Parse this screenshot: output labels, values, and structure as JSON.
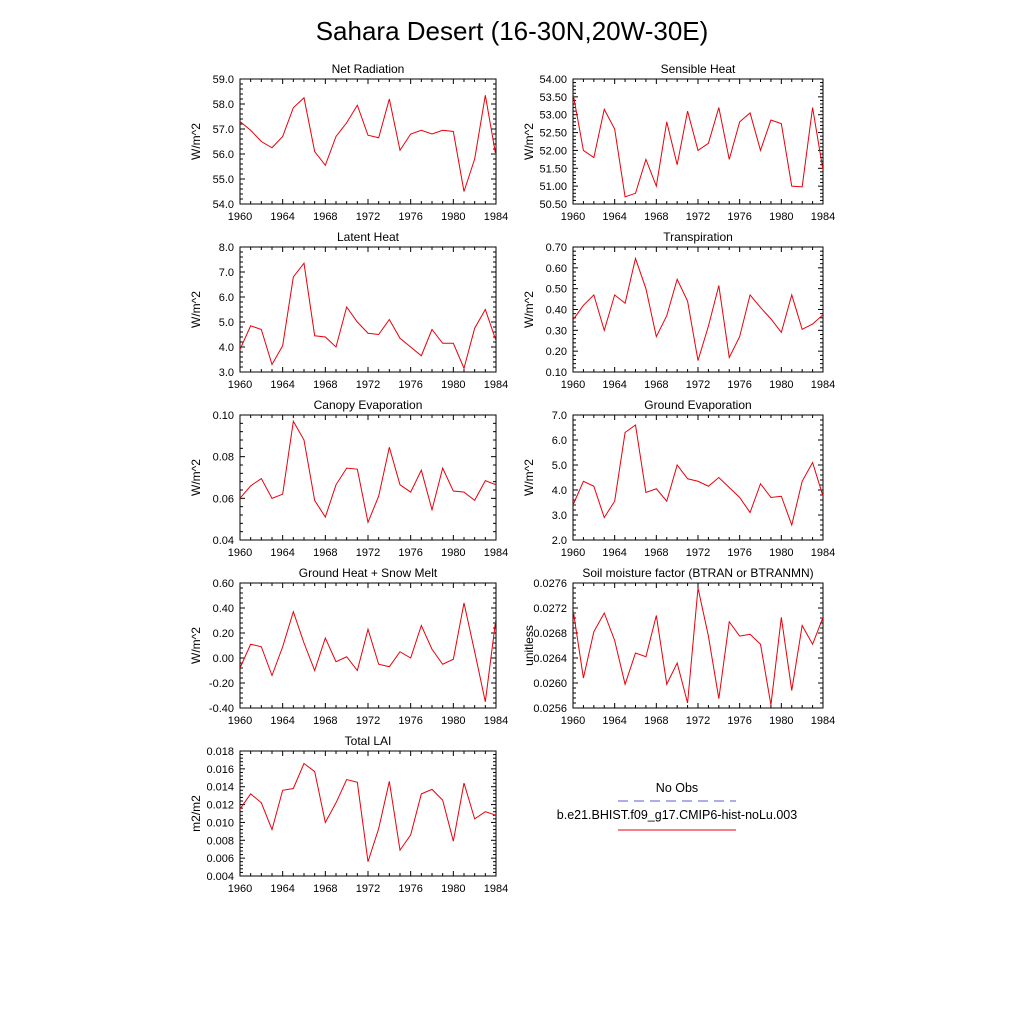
{
  "title": "Sahara Desert (16-30N,20W-30E)",
  "colors": {
    "series": "#e8000b",
    "obs": "#5b5bd6",
    "frame": "#000000"
  },
  "legend": {
    "obs_label": "No Obs",
    "model_label": "b.e21.BHIST.f09_g17.CMIP6-hist-noLu.003"
  },
  "chart_data": [
    {
      "type": "line",
      "title": "Net Radiation",
      "ylabel": "W/m^2",
      "x": [
        1960,
        1961,
        1962,
        1963,
        1964,
        1965,
        1966,
        1967,
        1968,
        1969,
        1970,
        1971,
        1972,
        1973,
        1974,
        1975,
        1976,
        1977,
        1978,
        1979,
        1980,
        1981,
        1982,
        1983,
        1984
      ],
      "values": [
        57.3,
        56.95,
        56.5,
        56.25,
        56.7,
        57.85,
        58.25,
        56.1,
        55.55,
        56.7,
        57.25,
        57.95,
        56.75,
        56.65,
        58.2,
        56.15,
        56.8,
        56.95,
        56.8,
        56.95,
        56.9,
        54.5,
        55.8,
        58.35,
        55.9
      ],
      "xlim": [
        1960,
        1984
      ],
      "ylim": [
        54.0,
        59.0
      ],
      "xticks": [
        "1960",
        "1964",
        "1968",
        "1972",
        "1976",
        "1980",
        "1984"
      ],
      "yticks": [
        "54.0",
        "55.0",
        "56.0",
        "57.0",
        "58.0",
        "59.0"
      ],
      "grid": false
    },
    {
      "type": "line",
      "title": "Sensible Heat",
      "ylabel": "W/m^2",
      "x": [
        1960,
        1961,
        1962,
        1963,
        1964,
        1965,
        1966,
        1967,
        1968,
        1969,
        1970,
        1971,
        1972,
        1973,
        1974,
        1975,
        1976,
        1977,
        1978,
        1979,
        1980,
        1981,
        1982,
        1983,
        1984
      ],
      "values": [
        53.6,
        52.0,
        51.8,
        53.15,
        52.6,
        50.7,
        50.8,
        51.75,
        51.0,
        52.8,
        51.6,
        53.1,
        52.0,
        52.2,
        53.2,
        51.75,
        52.8,
        53.05,
        52.0,
        52.85,
        52.75,
        51.0,
        50.98,
        53.2,
        51.45
      ],
      "xlim": [
        1960,
        1984
      ],
      "ylim": [
        50.5,
        54.0
      ],
      "xticks": [
        "1960",
        "1964",
        "1968",
        "1972",
        "1976",
        "1980",
        "1984"
      ],
      "yticks": [
        "50.50",
        "51.00",
        "51.50",
        "52.00",
        "52.50",
        "53.00",
        "53.50",
        "54.00"
      ],
      "grid": false
    },
    {
      "type": "line",
      "title": "Latent Heat",
      "ylabel": "W/m^2",
      "x": [
        1960,
        1961,
        1962,
        1963,
        1964,
        1965,
        1966,
        1967,
        1968,
        1969,
        1970,
        1971,
        1972,
        1973,
        1974,
        1975,
        1976,
        1977,
        1978,
        1979,
        1980,
        1981,
        1982,
        1983,
        1984
      ],
      "values": [
        3.9,
        4.85,
        4.7,
        3.3,
        4.05,
        6.8,
        7.35,
        4.45,
        4.4,
        4.0,
        5.6,
        5.0,
        4.55,
        4.5,
        5.1,
        4.35,
        4.0,
        3.65,
        4.7,
        4.15,
        4.15,
        3.15,
        4.75,
        5.5,
        4.25
      ],
      "xlim": [
        1960,
        1984
      ],
      "ylim": [
        3.0,
        8.0
      ],
      "xticks": [
        "1960",
        "1964",
        "1968",
        "1972",
        "1976",
        "1980",
        "1984"
      ],
      "yticks": [
        "3.0",
        "4.0",
        "5.0",
        "6.0",
        "7.0",
        "8.0"
      ],
      "grid": false
    },
    {
      "type": "line",
      "title": "Transpiration",
      "ylabel": "W/m^2",
      "x": [
        1960,
        1961,
        1962,
        1963,
        1964,
        1965,
        1966,
        1967,
        1968,
        1969,
        1970,
        1971,
        1972,
        1973,
        1974,
        1975,
        1976,
        1977,
        1978,
        1979,
        1980,
        1981,
        1982,
        1983,
        1984
      ],
      "values": [
        0.35,
        0.42,
        0.47,
        0.3,
        0.47,
        0.43,
        0.645,
        0.5,
        0.27,
        0.37,
        0.545,
        0.44,
        0.155,
        0.32,
        0.515,
        0.17,
        0.27,
        0.47,
        0.41,
        0.355,
        0.29,
        0.47,
        0.305,
        0.33,
        0.375
      ],
      "xlim": [
        1960,
        1984
      ],
      "ylim": [
        0.1,
        0.7
      ],
      "xticks": [
        "1960",
        "1964",
        "1968",
        "1972",
        "1976",
        "1980",
        "1984"
      ],
      "yticks": [
        "0.10",
        "0.20",
        "0.30",
        "0.40",
        "0.50",
        "0.60",
        "0.70"
      ],
      "grid": false
    },
    {
      "type": "line",
      "title": "Canopy Evaporation",
      "ylabel": "W/m^2",
      "x": [
        1960,
        1961,
        1962,
        1963,
        1964,
        1965,
        1966,
        1967,
        1968,
        1969,
        1970,
        1971,
        1972,
        1973,
        1974,
        1975,
        1976,
        1977,
        1978,
        1979,
        1980,
        1981,
        1982,
        1983,
        1984
      ],
      "values": [
        0.06,
        0.066,
        0.0695,
        0.06,
        0.062,
        0.097,
        0.088,
        0.059,
        0.051,
        0.0665,
        0.0745,
        0.074,
        0.0485,
        0.061,
        0.0845,
        0.0665,
        0.063,
        0.0735,
        0.0545,
        0.0745,
        0.0635,
        0.063,
        0.059,
        0.0685,
        0.0665
      ],
      "xlim": [
        1960,
        1984
      ],
      "ylim": [
        0.04,
        0.1
      ],
      "xticks": [
        "1960",
        "1964",
        "1968",
        "1972",
        "1976",
        "1980",
        "1984"
      ],
      "yticks": [
        "0.04",
        "0.06",
        "0.08",
        "0.10"
      ],
      "grid": false
    },
    {
      "type": "line",
      "title": "Ground Evaporation",
      "ylabel": "W/m^2",
      "x": [
        1960,
        1961,
        1962,
        1963,
        1964,
        1965,
        1966,
        1967,
        1968,
        1969,
        1970,
        1971,
        1972,
        1973,
        1974,
        1975,
        1976,
        1977,
        1978,
        1979,
        1980,
        1981,
        1982,
        1983,
        1984
      ],
      "values": [
        3.4,
        4.35,
        4.15,
        2.9,
        3.55,
        6.3,
        6.6,
        3.9,
        4.05,
        3.55,
        5.0,
        4.45,
        4.35,
        4.15,
        4.5,
        4.1,
        3.7,
        3.1,
        4.25,
        3.7,
        3.75,
        2.6,
        4.35,
        5.1,
        3.75
      ],
      "xlim": [
        1960,
        1984
      ],
      "ylim": [
        2.0,
        7.0
      ],
      "xticks": [
        "1960",
        "1964",
        "1968",
        "1972",
        "1976",
        "1980",
        "1984"
      ],
      "yticks": [
        "2.0",
        "3.0",
        "4.0",
        "5.0",
        "6.0",
        "7.0"
      ],
      "grid": false
    },
    {
      "type": "line",
      "title": "Ground Heat + Snow Melt",
      "ylabel": "W/m^2",
      "x": [
        1960,
        1961,
        1962,
        1963,
        1964,
        1965,
        1966,
        1967,
        1968,
        1969,
        1970,
        1971,
        1972,
        1973,
        1974,
        1975,
        1976,
        1977,
        1978,
        1979,
        1980,
        1981,
        1982,
        1983,
        1984
      ],
      "values": [
        -0.08,
        0.11,
        0.09,
        -0.14,
        0.09,
        0.37,
        0.12,
        -0.1,
        0.16,
        -0.03,
        0.01,
        -0.1,
        0.23,
        -0.05,
        -0.07,
        0.05,
        0.0,
        0.26,
        0.07,
        -0.05,
        -0.01,
        0.44,
        0.05,
        -0.35,
        0.32
      ],
      "xlim": [
        1960,
        1984
      ],
      "ylim": [
        -0.4,
        0.6
      ],
      "xticks": [
        "1960",
        "1964",
        "1968",
        "1972",
        "1976",
        "1980",
        "1984"
      ],
      "yticks": [
        "-0.40",
        "-0.20",
        "0.00",
        "0.20",
        "0.40",
        "0.60"
      ],
      "grid": false
    },
    {
      "type": "line",
      "title": "Soil moisture factor (BTRAN or BTRANMN)",
      "ylabel": "unitless",
      "x": [
        1960,
        1961,
        1962,
        1963,
        1964,
        1965,
        1966,
        1967,
        1968,
        1969,
        1970,
        1971,
        1972,
        1973,
        1974,
        1975,
        1976,
        1977,
        1978,
        1979,
        1980,
        1981,
        1982,
        1983,
        1984
      ],
      "values": [
        0.02718,
        0.02608,
        0.02682,
        0.02712,
        0.02668,
        0.02598,
        0.02648,
        0.02642,
        0.02708,
        0.02598,
        0.02632,
        0.02568,
        0.02752,
        0.02675,
        0.02575,
        0.02698,
        0.02675,
        0.02678,
        0.02662,
        0.02565,
        0.02705,
        0.02588,
        0.02692,
        0.02662,
        0.02705
      ],
      "xlim": [
        1960,
        1984
      ],
      "ylim": [
        0.0256,
        0.0276
      ],
      "xticks": [
        "1960",
        "1964",
        "1968",
        "1972",
        "1976",
        "1980",
        "1984"
      ],
      "yticks": [
        "0.0256",
        "0.0260",
        "0.0264",
        "0.0268",
        "0.0272",
        "0.0276"
      ],
      "grid": false
    },
    {
      "type": "line",
      "title": "Total LAI",
      "ylabel": "m2/m2",
      "x": [
        1960,
        1961,
        1962,
        1963,
        1964,
        1965,
        1966,
        1967,
        1968,
        1969,
        1970,
        1971,
        1972,
        1973,
        1974,
        1975,
        1976,
        1977,
        1978,
        1979,
        1980,
        1981,
        1982,
        1983,
        1984
      ],
      "values": [
        0.0115,
        0.0132,
        0.0122,
        0.0092,
        0.0136,
        0.0138,
        0.0166,
        0.0157,
        0.01,
        0.0122,
        0.0148,
        0.0145,
        0.0056,
        0.0093,
        0.0146,
        0.0069,
        0.0086,
        0.0132,
        0.0137,
        0.0125,
        0.0079,
        0.0144,
        0.0104,
        0.0112,
        0.0108
      ],
      "xlim": [
        1960,
        1984
      ],
      "ylim": [
        0.004,
        0.018
      ],
      "xticks": [
        "1960",
        "1964",
        "1968",
        "1972",
        "1976",
        "1980",
        "1984"
      ],
      "yticks": [
        "0.004",
        "0.006",
        "0.008",
        "0.010",
        "0.012",
        "0.014",
        "0.016",
        "0.018"
      ],
      "grid": false
    }
  ]
}
